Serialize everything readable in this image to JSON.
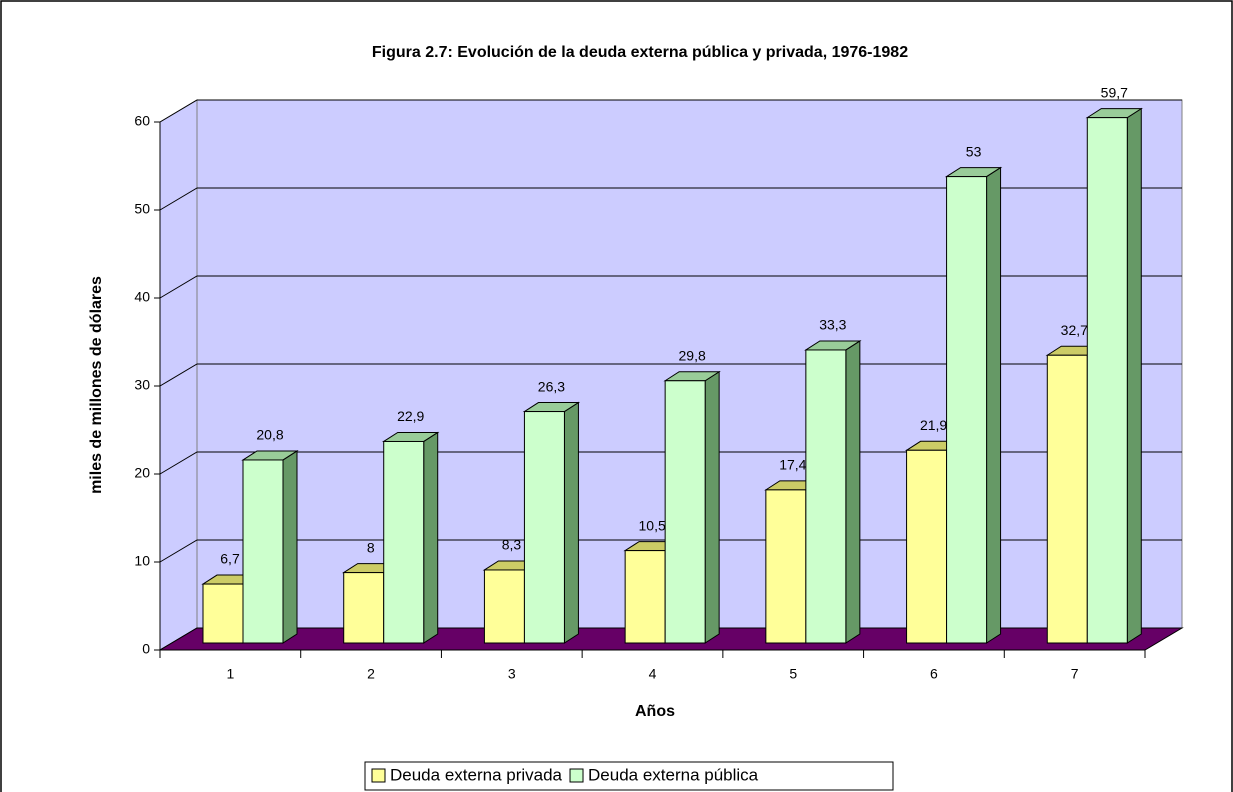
{
  "chart_data": {
    "type": "bar3d",
    "title": "Figura 2.7: Evolución de la deuda externa pública y privada, 1976-1982",
    "x_label": "Años",
    "y_label": "miles de millones de dólares",
    "categories": [
      "1",
      "2",
      "3",
      "4",
      "5",
      "6",
      "7"
    ],
    "series": [
      {
        "name": "Deuda externa privada",
        "color": "#FFFF99",
        "side_color": "#999966",
        "top_color": "#CCCC66",
        "values": [
          6.7,
          8,
          8.3,
          10.5,
          17.4,
          21.9,
          32.7
        ],
        "value_labels": [
          "6,7",
          "8",
          "8,3",
          "10,5",
          "17,4",
          "21,9",
          "32,7"
        ]
      },
      {
        "name": "Deuda externa pública",
        "color": "#CCFFCC",
        "side_color": "#669966",
        "top_color": "#99CC99",
        "values": [
          20.8,
          22.9,
          26.3,
          29.8,
          33.3,
          53,
          59.7
        ],
        "value_labels": [
          "20,8",
          "22,9",
          "26,3",
          "29,8",
          "33,3",
          "53",
          "59,7"
        ]
      }
    ],
    "ylim": [
      0,
      60
    ],
    "yticks": [
      0,
      10,
      20,
      30,
      40,
      50,
      60
    ],
    "grid": true,
    "wall_color": "#CCCCFF",
    "floor_color": "#660066",
    "legend": "bottom"
  }
}
